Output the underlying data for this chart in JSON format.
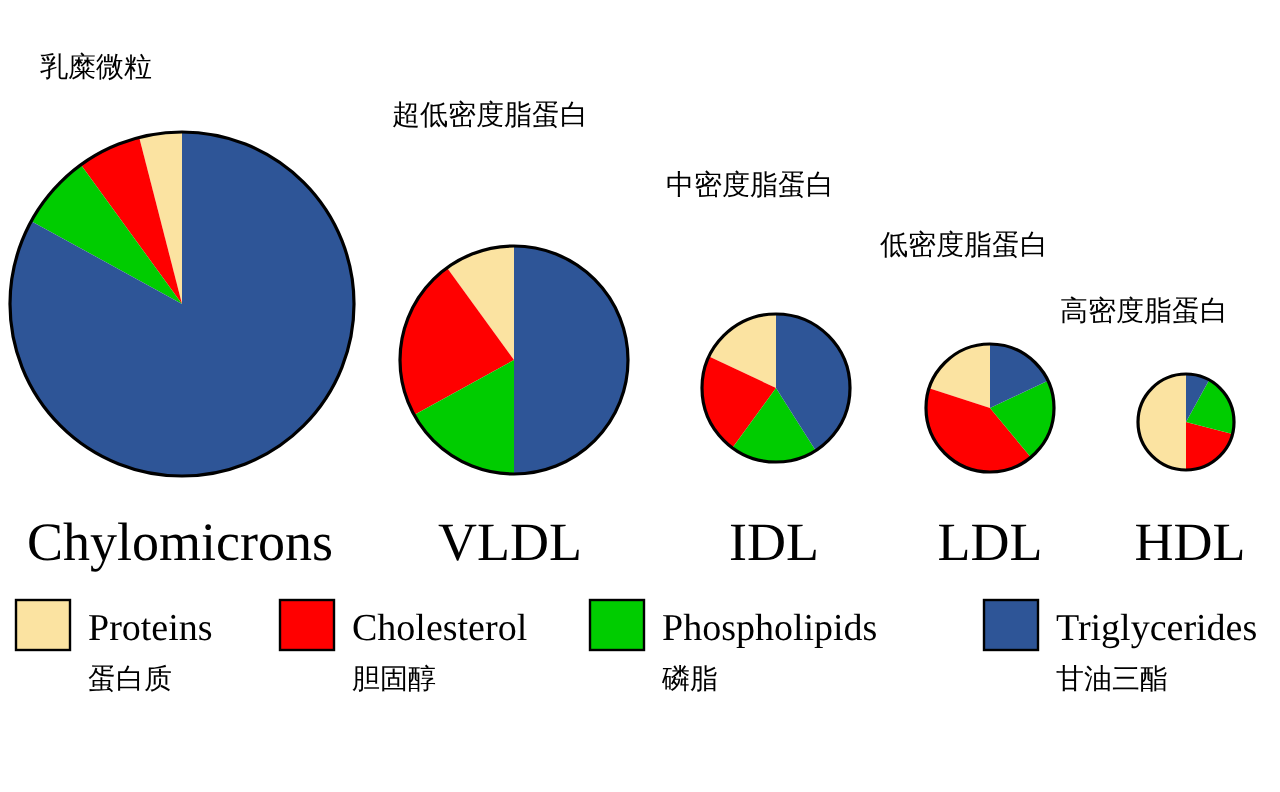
{
  "chart_data": [
    {
      "type": "pie",
      "title": "乳糜微粒",
      "xlabel": "Chylomicrons",
      "categories": [
        "Proteins\n蛋白质",
        "Cholesterol\n胆固醇",
        "Phospholipids\n磷脂",
        "Triglycerides\n甘油三酯"
      ],
      "values": [
        4,
        6,
        7,
        83
      ],
      "colors": [
        "#fbe3a1",
        "#ff0000",
        "#00cc00",
        "#2e5597"
      ],
      "legend": "bottom"
    },
    {
      "type": "pie",
      "title": "超低密度脂蛋白",
      "xlabel": "VLDL",
      "values": [
        10,
        23,
        17,
        50
      ],
      "colors": [
        "#fbe3a1",
        "#ff0000",
        "#00cc00",
        "#2e5597"
      ]
    },
    {
      "type": "pie",
      "title": "中密度脂蛋白",
      "xlabel": "IDL",
      "values": [
        18,
        22,
        19,
        41
      ],
      "colors": [
        "#fbe3a1",
        "#ff0000",
        "#00cc00",
        "#2e5597"
      ]
    },
    {
      "type": "pie",
      "title": "低密度脂蛋白",
      "xlabel": "LDL",
      "values": [
        20,
        41,
        21,
        18
      ],
      "colors": [
        "#fbe3a1",
        "#ff0000",
        "#00cc00",
        "#2e5597"
      ]
    },
    {
      "type": "pie",
      "title": "高密度脂蛋白",
      "xlabel": "HDL",
      "values": [
        50,
        21,
        21,
        8
      ],
      "colors": [
        "#fbe3a1",
        "#ff0000",
        "#00cc00",
        "#2e5597"
      ]
    }
  ]
}
